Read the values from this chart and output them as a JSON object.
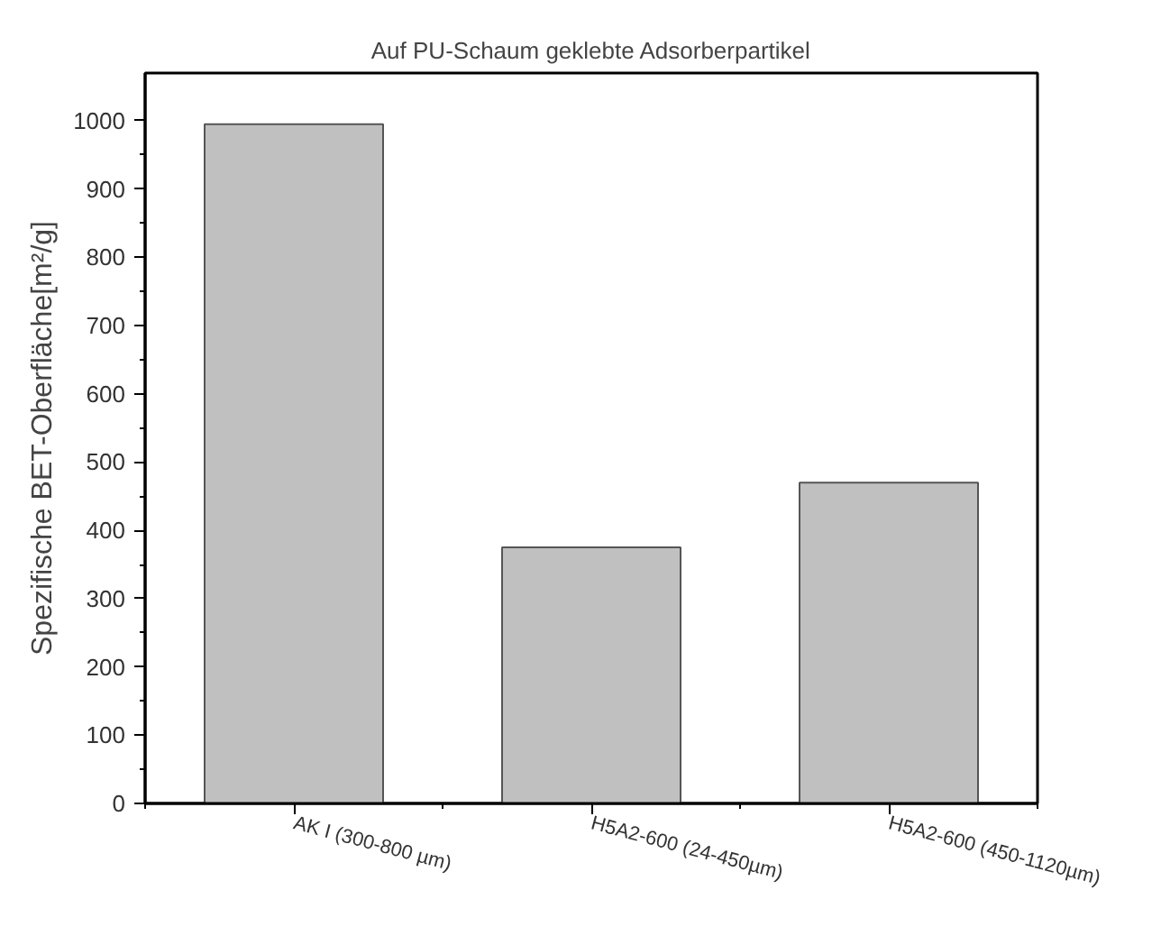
{
  "chart_data": {
    "type": "bar",
    "title": "Auf PU-Schaum geklebte Adsorberpartikel",
    "ylabel": "Spezifische BET-Oberfläche[m²/g]",
    "categories": [
      "AK I (300-800 µm)",
      "H5A2-600 (24-450µm)",
      "H5A2-600 (450-1120µm)"
    ],
    "values": [
      995,
      375,
      470
    ],
    "color": "#c0c0c0",
    "ylim": [
      0,
      1070
    ],
    "yticks": [
      0,
      100,
      200,
      300,
      400,
      500,
      600,
      700,
      800,
      900,
      1000
    ],
    "grid": false
  }
}
